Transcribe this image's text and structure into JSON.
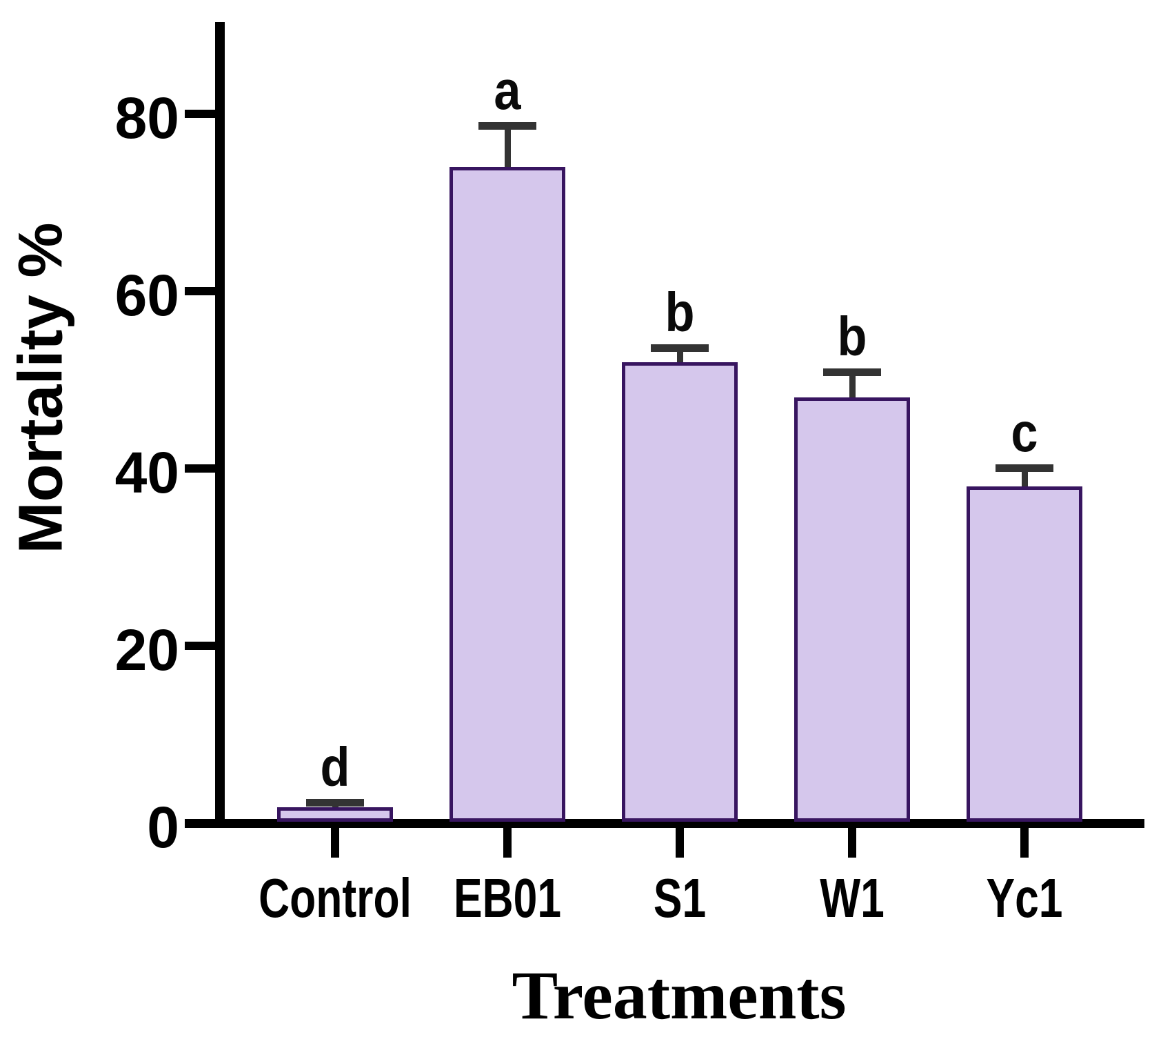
{
  "chart_data": {
    "type": "bar",
    "title": "",
    "xlabel": "Treatments",
    "ylabel": "Mortality %",
    "categories": [
      "Control",
      "EB01",
      "S1",
      "W1",
      "Yc1"
    ],
    "values": [
      1.8,
      74,
      52,
      48,
      38
    ],
    "errors": [
      0.5,
      4.7,
      1.6,
      2.9,
      2.1
    ],
    "error_style": "upper-cap-only",
    "significance_letters": [
      "d",
      "a",
      "b",
      "b",
      "c"
    ],
    "y_ticks": [
      0,
      20,
      40,
      60,
      80
    ],
    "y_tick_labels": [
      "0",
      "20",
      "40",
      "60",
      "80"
    ],
    "ylim": [
      0,
      90
    ],
    "grid": false,
    "legend_position": "none",
    "colors": {
      "bar_fill": "#d5c7ec",
      "bar_border": "#381560",
      "error_bar": "#333333",
      "axis": "#000000",
      "text": "#000000",
      "background": "#ffffff"
    }
  }
}
